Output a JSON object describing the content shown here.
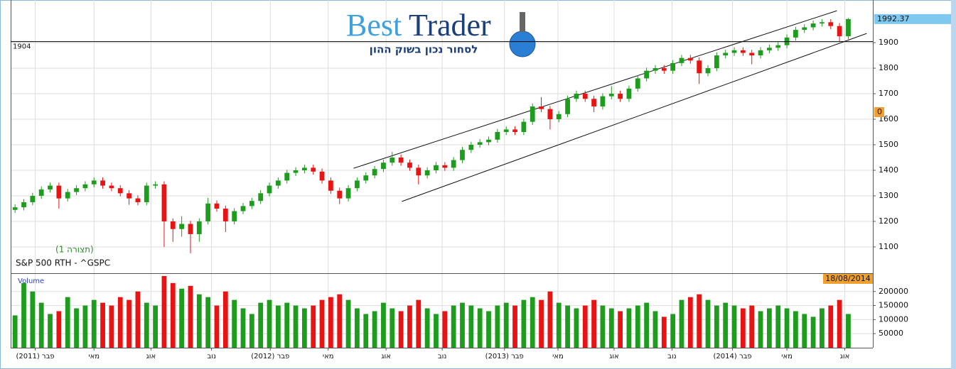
{
  "logo": {
    "first": "Best",
    "second": "Trader",
    "tagline": "לסחור נכון בשוק ההון"
  },
  "chart_data": {
    "type": "candlestick",
    "title": "S&P 500 RTH - ^GSPC",
    "subtitle": "(תצורה 1)",
    "up_color": "#1e9c1e",
    "down_color": "#e81414",
    "grid": true,
    "open": [
      1245,
      1255,
      1275,
      1300,
      1325,
      1340,
      1290,
      1315,
      1330,
      1345,
      1360,
      1340,
      1330,
      1310,
      1290,
      1275,
      1340,
      1345,
      1200,
      1170,
      1190,
      1150,
      1200,
      1270,
      1250,
      1200,
      1240,
      1260,
      1280,
      1310,
      1340,
      1360,
      1390,
      1400,
      1410,
      1395,
      1360,
      1320,
      1290,
      1330,
      1360,
      1380,
      1405,
      1430,
      1450,
      1430,
      1410,
      1380,
      1400,
      1420,
      1410,
      1440,
      1480,
      1500,
      1510,
      1520,
      1550,
      1560,
      1550,
      1590,
      1650,
      1640,
      1600,
      1620,
      1680,
      1700,
      1680,
      1650,
      1690,
      1700,
      1680,
      1720,
      1760,
      1790,
      1800,
      1790,
      1820,
      1840,
      1830,
      1780,
      1800,
      1850,
      1860,
      1870,
      1860,
      1850,
      1870,
      1880,
      1890,
      1920,
      1950,
      1960,
      1975,
      1980,
      1965,
      1925
    ],
    "high": [
      1267,
      1287,
      1312,
      1337,
      1352,
      1352,
      1327,
      1342,
      1357,
      1372,
      1372,
      1352,
      1342,
      1322,
      1302,
      1352,
      1357,
      1357,
      1212,
      1220,
      1202,
      1212,
      1292,
      1282,
      1262,
      1252,
      1272,
      1292,
      1322,
      1352,
      1372,
      1402,
      1412,
      1422,
      1422,
      1407,
      1372,
      1332,
      1342,
      1372,
      1392,
      1417,
      1442,
      1472,
      1462,
      1442,
      1422,
      1412,
      1432,
      1432,
      1452,
      1492,
      1512,
      1522,
      1532,
      1562,
      1572,
      1572,
      1602,
      1662,
      1687,
      1652,
      1632,
      1692,
      1712,
      1712,
      1692,
      1702,
      1730,
      1712,
      1732,
      1772,
      1802,
      1812,
      1812,
      1832,
      1852,
      1852,
      1842,
      1812,
      1862,
      1872,
      1882,
      1882,
      1872,
      1882,
      1892,
      1902,
      1932,
      1962,
      1972,
      1987,
      1992,
      1992,
      1977,
      1996
    ],
    "low": [
      1233,
      1243,
      1263,
      1288,
      1313,
      1250,
      1278,
      1303,
      1318,
      1333,
      1328,
      1318,
      1298,
      1265,
      1263,
      1263,
      1328,
      1100,
      1120,
      1140,
      1075,
      1120,
      1188,
      1238,
      1158,
      1188,
      1228,
      1248,
      1268,
      1298,
      1328,
      1348,
      1378,
      1388,
      1383,
      1348,
      1308,
      1268,
      1278,
      1318,
      1348,
      1368,
      1393,
      1418,
      1418,
      1398,
      1345,
      1368,
      1388,
      1398,
      1398,
      1428,
      1468,
      1488,
      1498,
      1508,
      1538,
      1538,
      1538,
      1578,
      1628,
      1560,
      1588,
      1608,
      1668,
      1668,
      1628,
      1638,
      1678,
      1668,
      1668,
      1708,
      1748,
      1778,
      1778,
      1778,
      1808,
      1818,
      1738,
      1768,
      1788,
      1838,
      1848,
      1848,
      1815,
      1838,
      1858,
      1868,
      1878,
      1908,
      1938,
      1948,
      1963,
      1953,
      1905,
      1913
    ],
    "close": [
      1255,
      1275,
      1300,
      1325,
      1340,
      1290,
      1315,
      1330,
      1345,
      1360,
      1340,
      1330,
      1310,
      1290,
      1275,
      1340,
      1345,
      1200,
      1170,
      1190,
      1150,
      1200,
      1270,
      1250,
      1200,
      1240,
      1260,
      1280,
      1310,
      1340,
      1360,
      1390,
      1400,
      1410,
      1395,
      1360,
      1320,
      1290,
      1330,
      1360,
      1380,
      1405,
      1430,
      1450,
      1430,
      1410,
      1380,
      1400,
      1420,
      1410,
      1440,
      1480,
      1500,
      1510,
      1520,
      1550,
      1560,
      1550,
      1590,
      1650,
      1640,
      1600,
      1620,
      1680,
      1700,
      1680,
      1650,
      1690,
      1700,
      1680,
      1720,
      1760,
      1790,
      1800,
      1790,
      1820,
      1840,
      1830,
      1780,
      1800,
      1850,
      1860,
      1870,
      1860,
      1850,
      1870,
      1880,
      1890,
      1920,
      1950,
      1960,
      1975,
      1980,
      1965,
      1925,
      1992.37
    ],
    "xlim": [
      -0.5,
      97.8
    ],
    "xticks": [
      {
        "value": 2.3,
        "label": "פבר (2011)"
      },
      {
        "value": 9.0,
        "label": "מאי"
      },
      {
        "value": 15.5,
        "label": "אוג"
      },
      {
        "value": 22.4,
        "label": "נוב"
      },
      {
        "value": 29.1,
        "label": "פבר (2012)"
      },
      {
        "value": 35.7,
        "label": "מאי"
      },
      {
        "value": 42.3,
        "label": "אוג"
      },
      {
        "value": 48.7,
        "label": "נוב"
      },
      {
        "value": 55.8,
        "label": "פבר (2013)"
      },
      {
        "value": 61.9,
        "label": "מאי"
      },
      {
        "value": 68.3,
        "label": "אוג"
      },
      {
        "value": 74.9,
        "label": "נוב"
      },
      {
        "value": 81.8,
        "label": "פבר (2014)"
      },
      {
        "value": 88.0,
        "label": "מאי"
      },
      {
        "value": 94.6,
        "label": "אוג"
      }
    ],
    "ylim": [
      997,
      2067
    ],
    "yticks": [
      1100,
      1200,
      1300,
      1400,
      1500,
      1600,
      1700,
      1800,
      1900
    ],
    "reference_line": 1904,
    "indicator_tag": 0,
    "date_tag": "18/08/2014",
    "trendlines": [
      {
        "x": [
          38.6,
          93.7
        ],
        "y": [
          1408,
          2025
        ]
      },
      {
        "x": [
          44.1,
          97.1
        ],
        "y": [
          1278,
          1936
        ]
      }
    ],
    "volume": {
      "label": "Volume",
      "ylim": [
        0,
        265000
      ],
      "yticks": [
        50000,
        100000,
        150000,
        200000
      ],
      "values": [
        115000,
        230000,
        200000,
        160000,
        120000,
        130000,
        180000,
        140000,
        150000,
        170000,
        160000,
        150000,
        180000,
        170000,
        200000,
        160000,
        150000,
        255000,
        230000,
        210000,
        220000,
        190000,
        180000,
        150000,
        200000,
        170000,
        140000,
        120000,
        160000,
        170000,
        150000,
        160000,
        150000,
        140000,
        150000,
        170000,
        180000,
        190000,
        170000,
        140000,
        120000,
        130000,
        160000,
        140000,
        130000,
        150000,
        170000,
        140000,
        120000,
        130000,
        150000,
        160000,
        150000,
        140000,
        130000,
        150000,
        160000,
        150000,
        170000,
        180000,
        170000,
        200000,
        160000,
        150000,
        140000,
        150000,
        170000,
        150000,
        140000,
        130000,
        140000,
        150000,
        160000,
        130000,
        110000,
        120000,
        170000,
        180000,
        190000,
        170000,
        150000,
        160000,
        150000,
        140000,
        150000,
        130000,
        140000,
        150000,
        140000,
        130000,
        120000,
        110000,
        140000,
        150000,
        170000,
        120000
      ]
    }
  }
}
